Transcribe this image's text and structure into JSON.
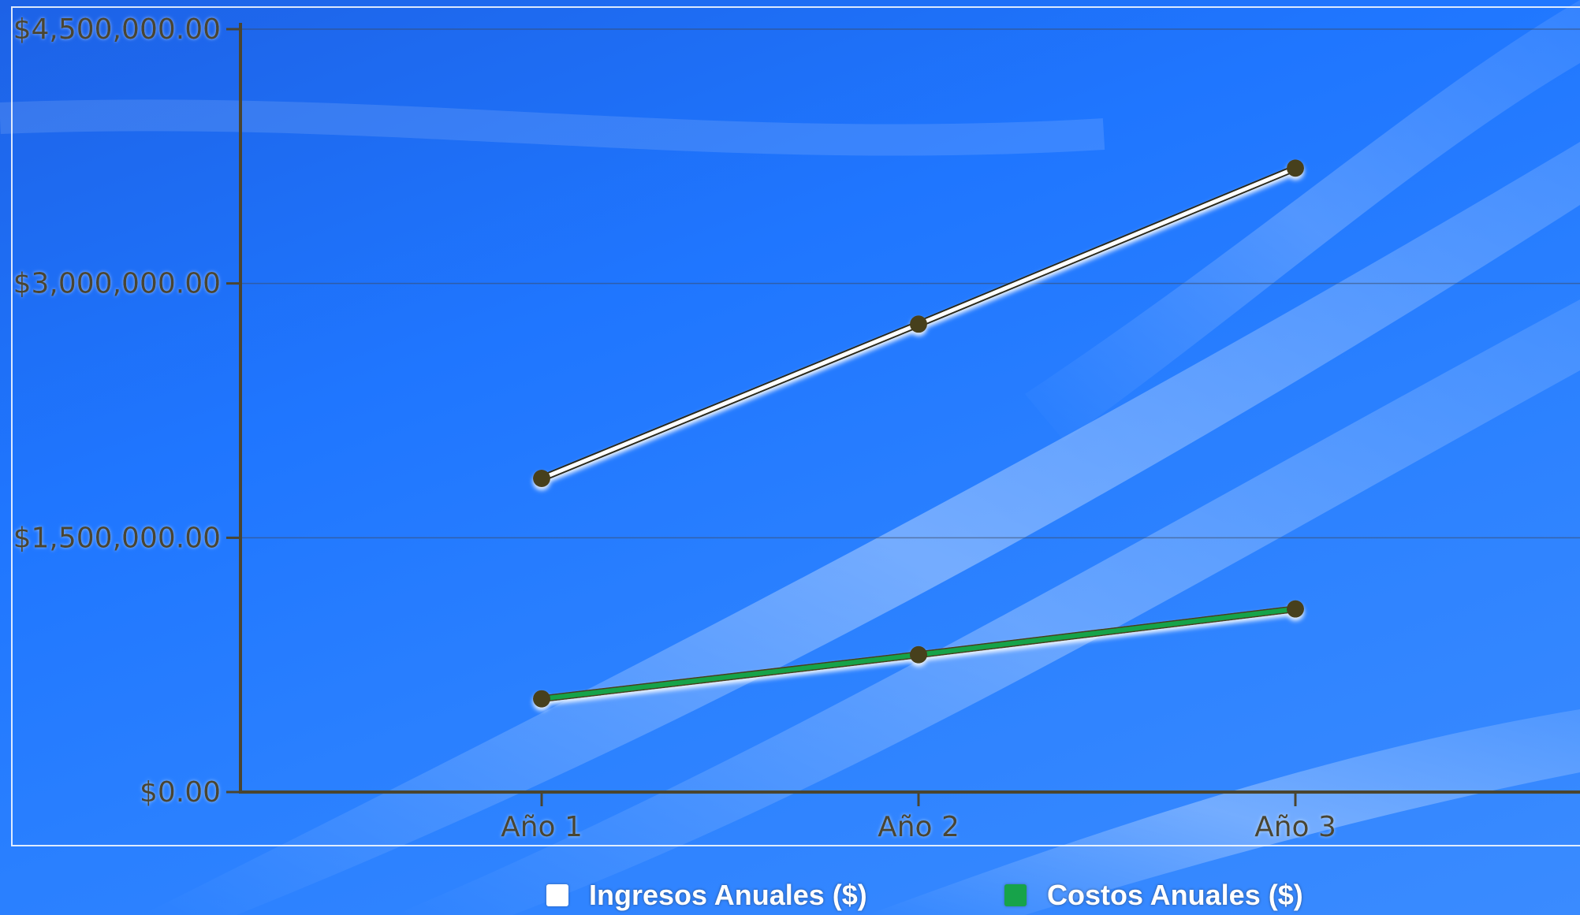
{
  "chart_data": {
    "type": "line",
    "title": "",
    "xlabel": "",
    "ylabel": "",
    "categories": [
      "Año 1",
      "Año 2",
      "Año 3"
    ],
    "y_tick_labels": [
      "$0.00",
      "$1,500,000.00",
      "$3,000,000.00",
      "$4,500,000.00"
    ],
    "ylim": [
      0,
      4500000
    ],
    "grid": true,
    "legend_position": "bottom",
    "series": [
      {
        "name": "Ingresos Anuales ($)",
        "values": [
          1850000,
          2760000,
          3680000
        ],
        "color": "#ffffff"
      },
      {
        "name": "Costos Anuales ($)",
        "values": [
          550000,
          810000,
          1080000
        ],
        "color": "#17a34a"
      }
    ],
    "marker_color": "#463f1a",
    "axis_color": "#4a4530"
  }
}
